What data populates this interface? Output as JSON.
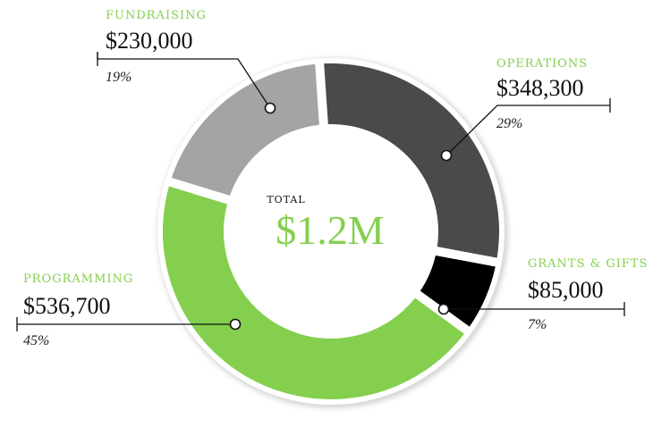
{
  "chart_data": {
    "type": "pie",
    "categories": [
      "Fundraising",
      "Operations",
      "Grants & Gifts",
      "Programming"
    ],
    "category_labels": [
      "FUNDRAISING",
      "OPERATIONS",
      "GRANTS & GIFTS",
      "PROGRAMMING"
    ],
    "values": [
      230000,
      348300,
      85000,
      536700
    ],
    "value_labels": [
      "$230,000",
      "$348,300",
      "$85,000",
      "$536,700"
    ],
    "percent_labels": [
      "19%",
      "29%",
      "7%",
      "45%"
    ],
    "colors": [
      "#a3a4a3",
      "#4a4a49",
      "#000000",
      "#84cf4e"
    ],
    "accent_color": "#84cf4e",
    "center_label": "TOTAL",
    "center_value": "$1.2M"
  }
}
